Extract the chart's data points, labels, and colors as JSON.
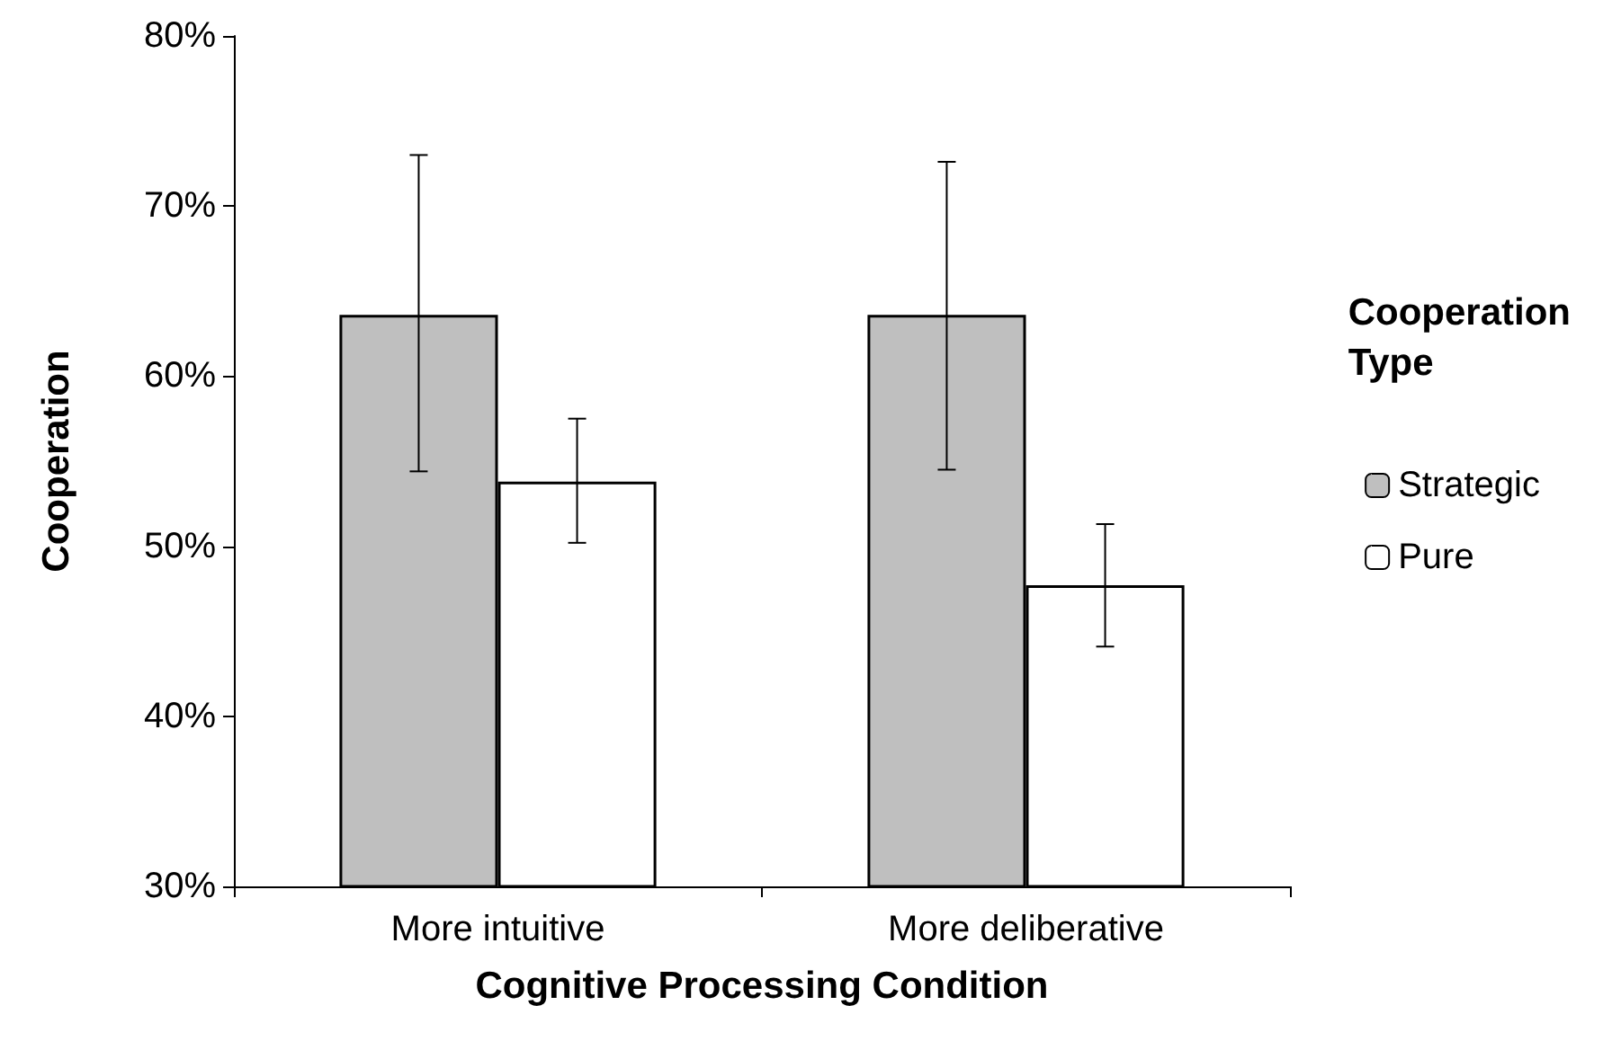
{
  "chart_data": {
    "type": "bar",
    "xlabel": "Cognitive Processing Condition",
    "ylabel": "Cooperation",
    "legend_title": "Cooperation Type",
    "categories": [
      "More intuitive",
      "More deliberative"
    ],
    "series": [
      {
        "name": "Strategic",
        "color": "#bfbfbf",
        "values": [
          63.6,
          63.6
        ],
        "errors": [
          [
            54.4,
            73.0
          ],
          [
            54.5,
            72.6
          ]
        ]
      },
      {
        "name": "Pure",
        "color": "#ffffff",
        "values": [
          53.8,
          47.7
        ],
        "errors": [
          [
            50.2,
            57.5
          ],
          [
            44.1,
            51.3
          ]
        ]
      }
    ],
    "ylim": [
      30,
      80
    ],
    "yticks": [
      {
        "value": 30,
        "label": "30%"
      },
      {
        "value": 40,
        "label": "40%"
      },
      {
        "value": 50,
        "label": "50%"
      },
      {
        "value": 60,
        "label": "60%"
      },
      {
        "value": 70,
        "label": "70%"
      },
      {
        "value": 80,
        "label": "80%"
      }
    ],
    "grid": false,
    "legend": "right"
  }
}
